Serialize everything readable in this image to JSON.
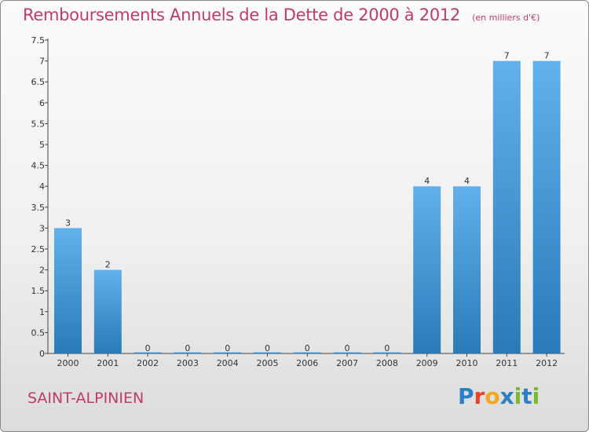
{
  "title": "Remboursements Annuels de la Dette de 2000 à 2012",
  "subtitle": "(en milliers d'€)",
  "commune": "SAINT-ALPINIEN",
  "logo": {
    "text": "Proxiti",
    "colors": [
      "#2c7fc4",
      "#e8412c",
      "#f4a61e",
      "#2c7fc4",
      "#7cb82f",
      "#2c7fc4",
      "#7cb82f"
    ]
  },
  "colors": {
    "bar_light": "#62b1ec",
    "bar_dark": "#2a7ab8",
    "text_accent": "#c03a6a"
  },
  "chart_data": {
    "type": "bar",
    "title": "Remboursements Annuels de la Dette de 2000 à 2012",
    "subtitle": "(en milliers d'€)",
    "categories": [
      "2000",
      "2001",
      "2002",
      "2003",
      "2004",
      "2005",
      "2006",
      "2007",
      "2008",
      "2009",
      "2010",
      "2011",
      "2012"
    ],
    "values": [
      3,
      2,
      0,
      0,
      0,
      0,
      0,
      0,
      0,
      4,
      4,
      7,
      7
    ],
    "data_labels": [
      "3",
      "2",
      "0",
      "0",
      "0",
      "0",
      "0",
      "0",
      "0",
      "4",
      "4",
      "7",
      "7"
    ],
    "ylim": [
      0,
      7.5
    ],
    "yticks": [
      "0",
      "0.5",
      "1",
      "1.5",
      "2",
      "2.5",
      "3",
      "3.5",
      "4",
      "4.5",
      "5",
      "5.5",
      "6",
      "6.5",
      "7",
      "7.5"
    ],
    "xlabel": "",
    "ylabel": "",
    "grid": false
  }
}
